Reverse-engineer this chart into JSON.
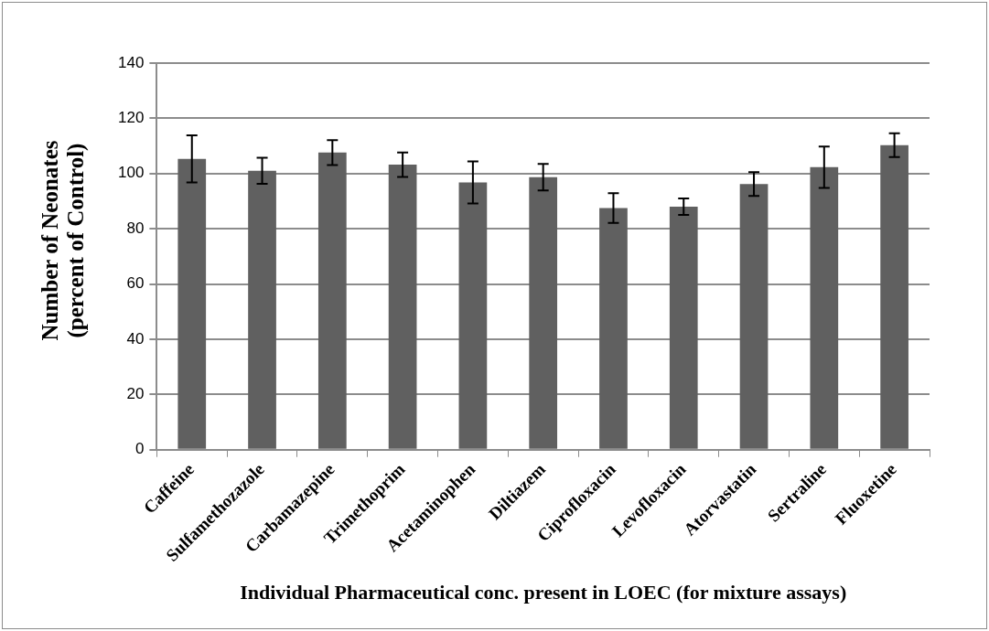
{
  "chart_data": {
    "type": "bar",
    "categories": [
      "Caffeine",
      "Sulfamethozazole",
      "Carbamazepine",
      "Trimethoprim",
      "Acetaminophen",
      "Diltiazem",
      "Ciprofloxacin",
      "Levofloxacin",
      "Atorvastatin",
      "Sertraline",
      "Fluoxetine"
    ],
    "values": [
      105.3,
      101.0,
      107.6,
      103.2,
      96.8,
      98.7,
      87.5,
      88.0,
      96.2,
      102.3,
      110.3
    ],
    "errors": [
      8.5,
      4.7,
      4.5,
      4.4,
      7.6,
      4.8,
      5.4,
      3.0,
      4.3,
      7.5,
      4.3
    ],
    "color": "#606060",
    "xlabel": "Individual Pharmaceutical conc. present in LOEC (for mixture assays)",
    "ylabel": "Number of Neonates (percent of Control)",
    "ylim": [
      0,
      140
    ],
    "yticks": [
      0,
      20,
      40,
      60,
      80,
      100,
      120,
      140
    ],
    "grid": "y",
    "legend": false
  }
}
